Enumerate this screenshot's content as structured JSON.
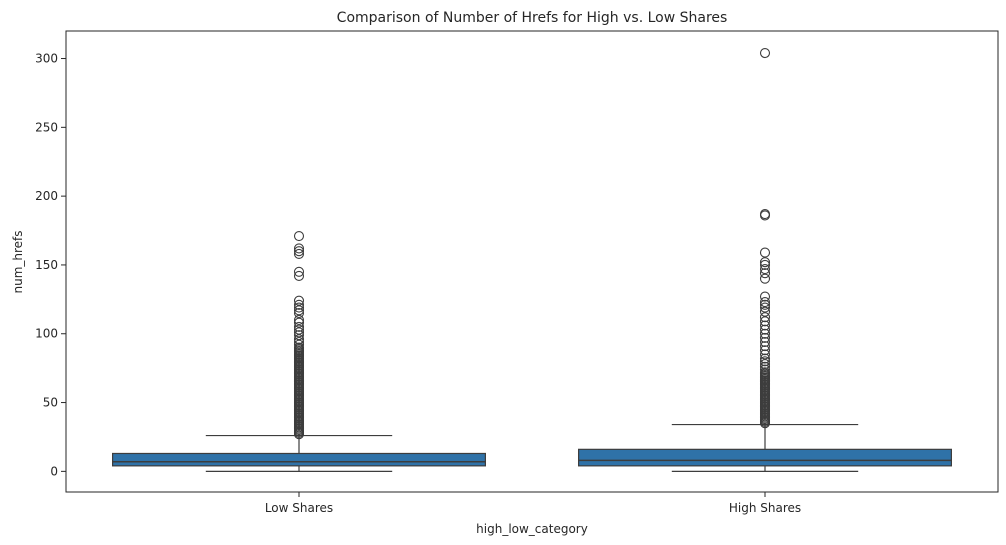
{
  "chart_data": {
    "type": "boxplot",
    "title": "Comparison of Number of Hrefs for High vs. Low Shares",
    "xlabel": "high_low_category",
    "ylabel": "num_hrefs",
    "ylim": [
      -15,
      320
    ],
    "yticks": [
      0,
      50,
      100,
      150,
      200,
      250,
      300
    ],
    "grid": false,
    "box_color": "#2f72a8",
    "line_color": "#3d3d3d",
    "categories": [
      "Low Shares",
      "High Shares"
    ],
    "boxes": [
      {
        "name": "Low Shares",
        "whisker_low": 0,
        "q1": 4,
        "median": 7,
        "q3": 13,
        "whisker_high": 26,
        "outliers": [
          27,
          28,
          29,
          30,
          31,
          32,
          33,
          34,
          35,
          36,
          37,
          38,
          39,
          40,
          41,
          42,
          43,
          44,
          45,
          46,
          47,
          48,
          49,
          50,
          51,
          52,
          53,
          54,
          55,
          56,
          57,
          58,
          59,
          60,
          61,
          62,
          63,
          64,
          65,
          66,
          67,
          68,
          69,
          70,
          71,
          72,
          73,
          74,
          75,
          76,
          77,
          78,
          79,
          80,
          81,
          82,
          83,
          84,
          85,
          86,
          87,
          88,
          89,
          90,
          92,
          94,
          96,
          99,
          101,
          103,
          105,
          108,
          110,
          115,
          117,
          119,
          121,
          124,
          142,
          145,
          158,
          160,
          162,
          171
        ]
      },
      {
        "name": "High Shares",
        "whisker_low": 0,
        "q1": 4,
        "median": 8,
        "q3": 16,
        "whisker_high": 34,
        "outliers": [
          35,
          36,
          37,
          38,
          39,
          40,
          41,
          42,
          43,
          44,
          45,
          46,
          47,
          48,
          49,
          50,
          51,
          52,
          53,
          54,
          55,
          56,
          57,
          58,
          59,
          60,
          61,
          62,
          63,
          64,
          65,
          66,
          67,
          68,
          69,
          70,
          71,
          72,
          74,
          76,
          78,
          80,
          82,
          85,
          88,
          91,
          94,
          97,
          100,
          103,
          106,
          109,
          112,
          116,
          119,
          121,
          123,
          127,
          140,
          144,
          147,
          150,
          152,
          159,
          186,
          187,
          304
        ]
      }
    ]
  }
}
